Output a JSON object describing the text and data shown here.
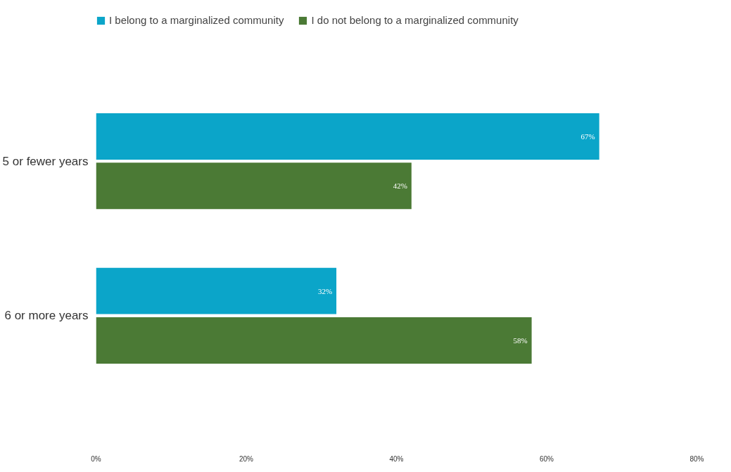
{
  "chart_data": {
    "type": "bar",
    "orientation": "horizontal",
    "categories": [
      "5 or fewer years",
      "6 or more years"
    ],
    "series": [
      {
        "name": "I belong to a marginalized community",
        "color": "#0ba5c9",
        "values": [
          67,
          32
        ],
        "value_labels": [
          "67%",
          "32%"
        ]
      },
      {
        "name": "I do not belong to a marginalized community",
        "color": "#4b7a35",
        "values": [
          42,
          58
        ],
        "value_labels": [
          "42%",
          "58%"
        ]
      }
    ],
    "xlim": [
      0,
      80
    ],
    "xticks": [
      {
        "value": 0,
        "label": "0%"
      },
      {
        "value": 20,
        "label": "20%"
      },
      {
        "value": 40,
        "label": "40%"
      },
      {
        "value": 60,
        "label": "60%"
      },
      {
        "value": 80,
        "label": "80%"
      }
    ],
    "grid": false,
    "legend": "top"
  }
}
